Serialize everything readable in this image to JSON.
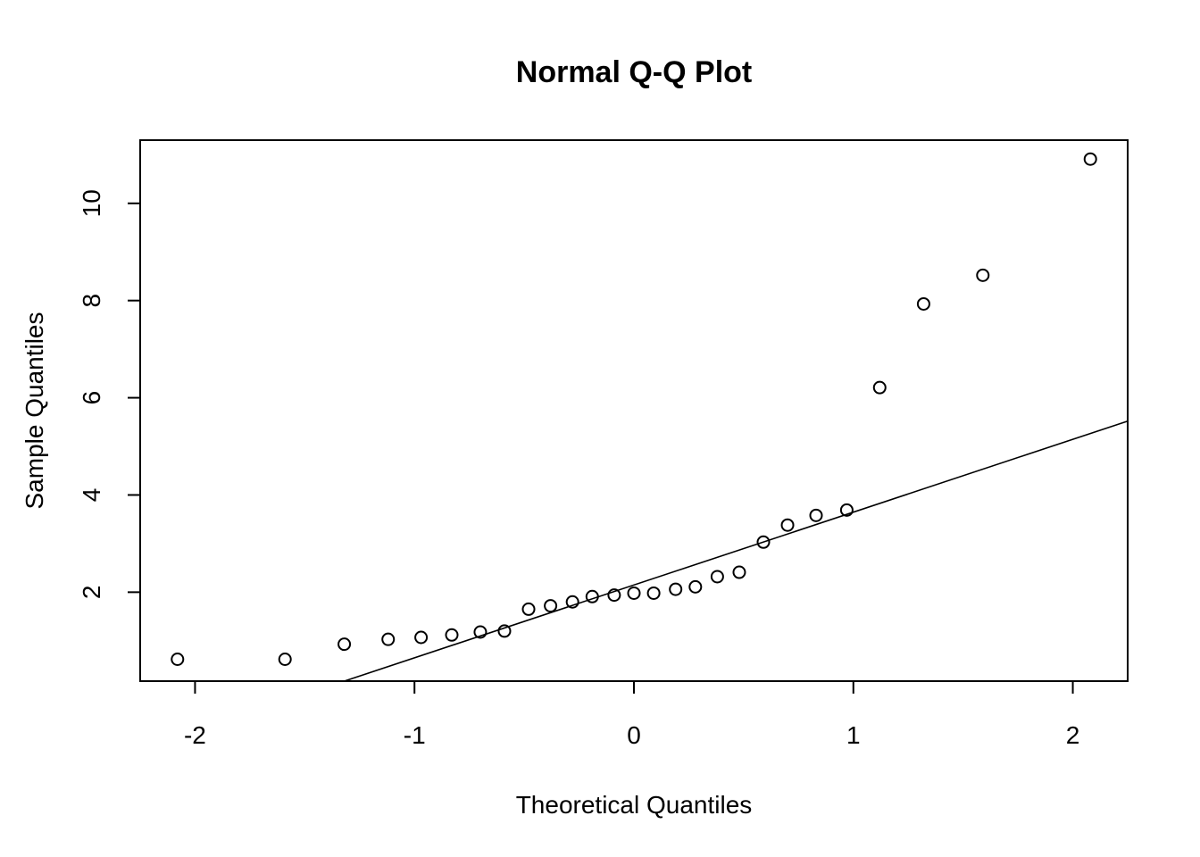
{
  "chart_data": {
    "type": "scatter",
    "title": "Normal Q-Q Plot",
    "xlabel": "Theoretical Quantiles",
    "ylabel": "Sample Quantiles",
    "xlim": [
      -2.25,
      2.25
    ],
    "ylim": [
      0.17,
      11.3
    ],
    "x_ticks": [
      -2,
      -1,
      0,
      1,
      2
    ],
    "x_tick_labels": [
      "-2",
      "-1",
      "0",
      "1",
      "2"
    ],
    "y_ticks": [
      2,
      4,
      6,
      8,
      10
    ],
    "y_tick_labels": [
      "2",
      "4",
      "6",
      "8",
      "10"
    ],
    "grid": false,
    "legend": "none",
    "points": {
      "x": [
        -2.08,
        -1.59,
        -1.32,
        -1.12,
        -0.97,
        -0.83,
        -0.7,
        -0.59,
        -0.48,
        -0.38,
        -0.28,
        -0.19,
        -0.09,
        0.0,
        0.09,
        0.19,
        0.28,
        0.38,
        0.48,
        0.59,
        0.7,
        0.83,
        0.97,
        1.12,
        1.32,
        1.59,
        2.08
      ],
      "y": [
        0.62,
        0.62,
        0.93,
        1.03,
        1.07,
        1.12,
        1.18,
        1.2,
        1.65,
        1.72,
        1.8,
        1.91,
        1.94,
        1.98,
        1.98,
        2.06,
        2.11,
        2.32,
        2.41,
        3.03,
        3.38,
        3.58,
        3.69,
        6.21,
        7.93,
        8.52,
        10.91
      ]
    },
    "reference_line": {
      "x": [
        -1.32,
        2.25
      ],
      "y": [
        0.17,
        5.52
      ]
    }
  }
}
